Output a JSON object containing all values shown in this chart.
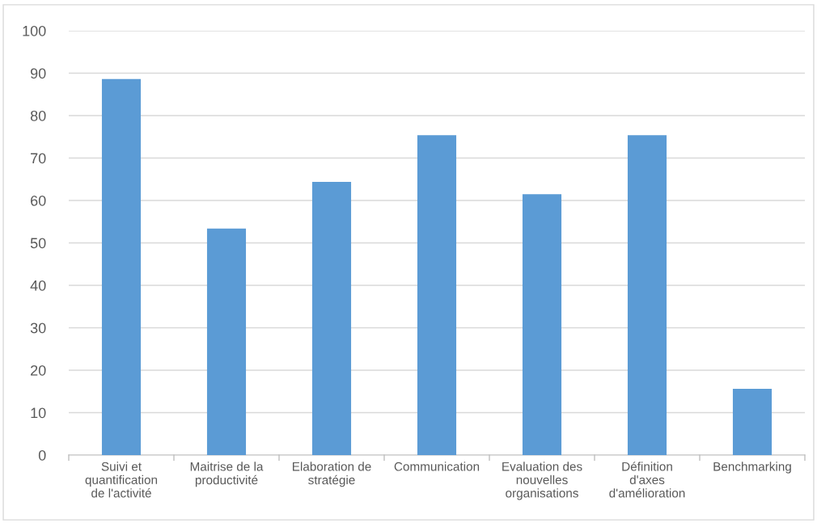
{
  "chart_data": {
    "type": "bar",
    "categories": [
      "Suivi et\nquantification\nde l'activité",
      "Maitrise de la\nproductivité",
      "Elaboration de\nstratégie",
      "Communication",
      "Evaluation des\nnouvelles\norganisations",
      "Définition\nd'axes\nd'amélioration",
      "Benchmarking"
    ],
    "values": [
      88.6,
      53.4,
      64.4,
      75.4,
      61.5,
      75.4,
      15.6
    ],
    "color": "#5b9bd5",
    "ylim": [
      0,
      100
    ],
    "yticks": [
      0,
      10,
      20,
      30,
      40,
      50,
      60,
      70,
      80,
      90,
      100
    ],
    "grid": "y",
    "legend": false
  }
}
